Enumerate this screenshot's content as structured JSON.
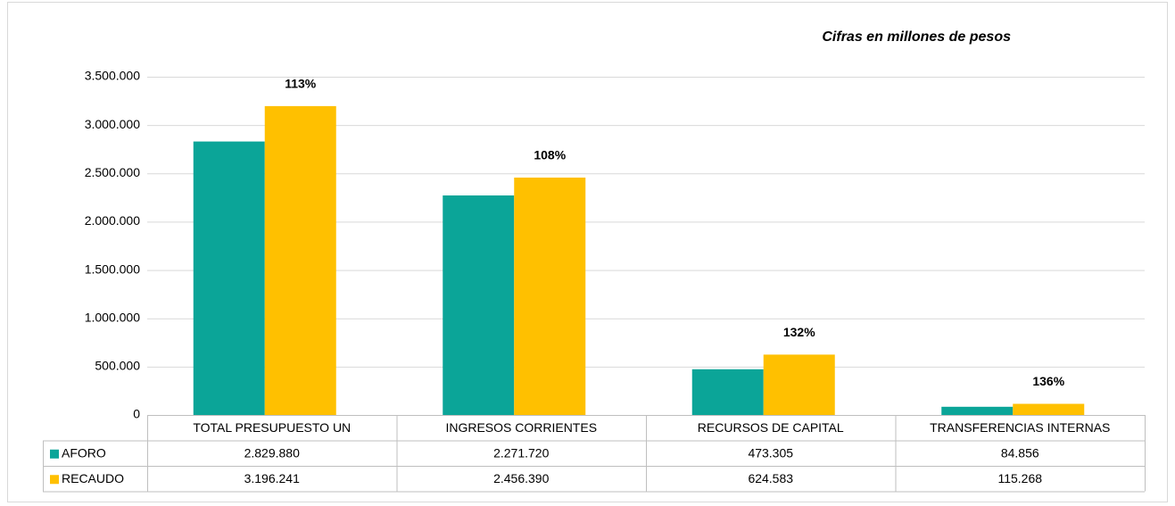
{
  "chart_data": {
    "type": "bar",
    "subtitle": "Cifras en millones de pesos",
    "categories": [
      "TOTAL PRESUPUESTO UN",
      "INGRESOS CORRIENTES",
      "RECURSOS DE CAPITAL",
      "TRANSFERENCIAS INTERNAS"
    ],
    "series": [
      {
        "name": "AFORO",
        "color": "#0ba598",
        "values": [
          2829880,
          2271720,
          473305,
          84856
        ],
        "value_labels": [
          "2.829.880",
          "2.271.720",
          "473.305",
          "84.856"
        ]
      },
      {
        "name": "RECAUDO",
        "color": "#ffc000",
        "values": [
          3196241,
          2456390,
          624583,
          115268
        ],
        "value_labels": [
          "3.196.241",
          "2.456.390",
          "624.583",
          "115.268"
        ]
      }
    ],
    "annotations": [
      "113%",
      "108%",
      "132%",
      "136%"
    ],
    "ylim": [
      0,
      3500000
    ],
    "yticks": [
      0,
      {
        "value": 500000,
        "label": "500.000"
      },
      {
        "value": 1000000,
        "label": "1.000.000"
      },
      {
        "value": 1500000,
        "label": "1.500.000"
      },
      {
        "value": 2000000,
        "label": "2.000.000"
      },
      {
        "value": 2500000,
        "label": "2.500.000"
      },
      {
        "value": 3000000,
        "label": "3.000.000"
      },
      {
        "value": 3500000,
        "label": "3.500.000"
      }
    ],
    "grid": true
  }
}
